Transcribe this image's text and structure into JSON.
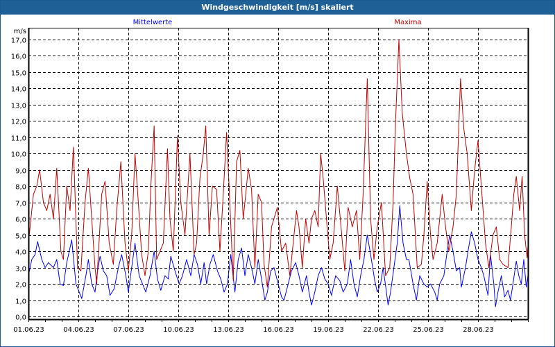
{
  "window": {
    "title": "Windgeschwindigkeit [m/s] skaliert"
  },
  "chart_data": {
    "type": "line",
    "title": "Windgeschwindigkeit [m/s] skaliert",
    "ylabel": "m/s",
    "xlabel": "",
    "ylim": [
      0,
      17
    ],
    "xlim_days": [
      0,
      30
    ],
    "grid": true,
    "y_ticks": [
      "0,0",
      "1,0",
      "2,0",
      "3,0",
      "4,0",
      "5,0",
      "6,0",
      "7,0",
      "8,0",
      "9,0",
      "10,0",
      "11,0",
      "12,0",
      "13,0",
      "14,0",
      "15,0",
      "16,0",
      "17,0"
    ],
    "x_ticks": [
      {
        "day": 0,
        "label": "01.06.23"
      },
      {
        "day": 3,
        "label": "04.06.23"
      },
      {
        "day": 6,
        "label": "07.06.23"
      },
      {
        "day": 9,
        "label": "10.06.23"
      },
      {
        "day": 12,
        "label": "13.06.23"
      },
      {
        "day": 15,
        "label": "16.06.23"
      },
      {
        "day": 18,
        "label": "19.06.23"
      },
      {
        "day": 21,
        "label": "22.06.23"
      },
      {
        "day": 24,
        "label": "25.06.23"
      },
      {
        "day": 27,
        "label": "28.06.23"
      }
    ],
    "series": [
      {
        "name": "Mittelwerte",
        "color": "#0000ff",
        "legend": "top-left",
        "points": [
          [
            0,
            2.5
          ],
          [
            0.2,
            3.5
          ],
          [
            0.4,
            3.8
          ],
          [
            0.55,
            4.6
          ],
          [
            0.8,
            3.5
          ],
          [
            1.0,
            3.0
          ],
          [
            1.2,
            3.3
          ],
          [
            1.5,
            3.0
          ],
          [
            1.7,
            3.5
          ],
          [
            1.9,
            2.0
          ],
          [
            2.1,
            1.9
          ],
          [
            2.3,
            3.3
          ],
          [
            2.6,
            4.7
          ],
          [
            2.85,
            2.0
          ],
          [
            3.05,
            1.5
          ],
          [
            3.2,
            1.1
          ],
          [
            3.45,
            2.5
          ],
          [
            3.6,
            3.5
          ],
          [
            3.8,
            2.0
          ],
          [
            4.0,
            1.5
          ],
          [
            4.15,
            2.8
          ],
          [
            4.3,
            3.7
          ],
          [
            4.5,
            2.8
          ],
          [
            4.7,
            2.5
          ],
          [
            4.9,
            1.3
          ],
          [
            5.15,
            1.7
          ],
          [
            5.4,
            3.0
          ],
          [
            5.6,
            3.8
          ],
          [
            5.85,
            2.5
          ],
          [
            6.0,
            1.5
          ],
          [
            6.2,
            3.0
          ],
          [
            6.4,
            4.5
          ],
          [
            6.65,
            2.5
          ],
          [
            6.85,
            2.0
          ],
          [
            7.05,
            1.5
          ],
          [
            7.3,
            2.5
          ],
          [
            7.55,
            4.0
          ],
          [
            7.75,
            2.3
          ],
          [
            7.95,
            1.6
          ],
          [
            8.2,
            2.5
          ],
          [
            8.4,
            2.3
          ],
          [
            8.55,
            3.7
          ],
          [
            8.8,
            2.8
          ],
          [
            9.05,
            2.0
          ],
          [
            9.25,
            2.5
          ],
          [
            9.5,
            3.5
          ],
          [
            9.75,
            2.5
          ],
          [
            9.95,
            3.8
          ],
          [
            10.15,
            3.2
          ],
          [
            10.35,
            2.0
          ],
          [
            10.55,
            3.3
          ],
          [
            10.7,
            2.0
          ],
          [
            10.9,
            3.2
          ],
          [
            11.1,
            3.8
          ],
          [
            11.35,
            2.8
          ],
          [
            11.55,
            2.3
          ],
          [
            11.75,
            1.5
          ],
          [
            11.95,
            2.0
          ],
          [
            12.15,
            3.8
          ],
          [
            12.4,
            1.5
          ],
          [
            12.6,
            3.5
          ],
          [
            12.8,
            4.2
          ],
          [
            13.0,
            2.5
          ],
          [
            13.2,
            3.8
          ],
          [
            13.4,
            3.0
          ],
          [
            13.6,
            2.0
          ],
          [
            13.8,
            3.5
          ],
          [
            14.0,
            2.3
          ],
          [
            14.2,
            1.0
          ],
          [
            14.35,
            1.5
          ],
          [
            14.55,
            2.8
          ],
          [
            14.75,
            3.0
          ],
          [
            15.0,
            2.0
          ],
          [
            15.2,
            1.2
          ],
          [
            15.35,
            1.0
          ],
          [
            15.6,
            2.0
          ],
          [
            15.8,
            2.8
          ],
          [
            16.05,
            3.3
          ],
          [
            16.25,
            2.5
          ],
          [
            16.45,
            1.5
          ],
          [
            16.7,
            2.5
          ],
          [
            16.85,
            1.5
          ],
          [
            17.0,
            0.7
          ],
          [
            17.2,
            1.5
          ],
          [
            17.4,
            2.5
          ],
          [
            17.6,
            3.0
          ],
          [
            17.8,
            2.3
          ],
          [
            18.0,
            2.0
          ],
          [
            18.2,
            1.3
          ],
          [
            18.45,
            2.5
          ],
          [
            18.7,
            2.2
          ],
          [
            18.9,
            1.5
          ],
          [
            19.15,
            2.0
          ],
          [
            19.35,
            3.5
          ],
          [
            19.55,
            2.0
          ],
          [
            19.75,
            1.2
          ],
          [
            19.95,
            2.5
          ],
          [
            20.15,
            3.5
          ],
          [
            20.35,
            5.0
          ],
          [
            20.55,
            3.8
          ],
          [
            20.8,
            2.2
          ],
          [
            20.95,
            1.5
          ],
          [
            21.15,
            2.0
          ],
          [
            21.3,
            3.0
          ],
          [
            21.5,
            1.5
          ],
          [
            21.6,
            0.7
          ],
          [
            21.75,
            1.5
          ],
          [
            21.95,
            3.0
          ],
          [
            22.15,
            4.5
          ],
          [
            22.3,
            6.8
          ],
          [
            22.5,
            4.5
          ],
          [
            22.7,
            3.5
          ],
          [
            22.85,
            3.5
          ],
          [
            23.1,
            2.0
          ],
          [
            23.3,
            1.0
          ],
          [
            23.5,
            2.5
          ],
          [
            23.75,
            2.0
          ],
          [
            23.95,
            1.8
          ],
          [
            24.15,
            2.0
          ],
          [
            24.4,
            1.5
          ],
          [
            24.55,
            1.0
          ],
          [
            24.7,
            2.0
          ],
          [
            24.95,
            2.5
          ],
          [
            25.15,
            4.0
          ],
          [
            25.3,
            5.0
          ],
          [
            25.5,
            4.0
          ],
          [
            25.7,
            2.8
          ],
          [
            25.9,
            3.0
          ],
          [
            26.0,
            1.8
          ],
          [
            26.25,
            3.0
          ],
          [
            26.4,
            4.0
          ],
          [
            26.6,
            5.2
          ],
          [
            26.8,
            4.5
          ],
          [
            27.0,
            3.5
          ],
          [
            27.2,
            3.0
          ],
          [
            27.35,
            2.5
          ],
          [
            27.6,
            1.3
          ],
          [
            27.75,
            3.8
          ],
          [
            27.95,
            2.0
          ],
          [
            28.05,
            0.6
          ],
          [
            28.2,
            1.5
          ],
          [
            28.4,
            2.5
          ],
          [
            28.6,
            1.2
          ],
          [
            28.8,
            1.6
          ],
          [
            28.95,
            1.0
          ],
          [
            29.1,
            2.0
          ],
          [
            29.3,
            3.4
          ],
          [
            29.45,
            2.5
          ],
          [
            29.6,
            2.0
          ],
          [
            29.75,
            3.5
          ],
          [
            29.9,
            1.8
          ],
          [
            30.0,
            2.5
          ]
        ]
      },
      {
        "name": "Maxima",
        "color": "#c00000",
        "legend": "top-right",
        "points": [
          [
            0,
            4.5
          ],
          [
            0.3,
            7.5
          ],
          [
            0.5,
            8.0
          ],
          [
            0.67,
            9.0
          ],
          [
            0.9,
            7.0
          ],
          [
            1.1,
            6.5
          ],
          [
            1.3,
            7.5
          ],
          [
            1.5,
            6.0
          ],
          [
            1.7,
            9.1
          ],
          [
            1.95,
            4.0
          ],
          [
            2.1,
            3.5
          ],
          [
            2.3,
            8.0
          ],
          [
            2.5,
            6.5
          ],
          [
            2.7,
            10.4
          ],
          [
            2.95,
            3.0
          ],
          [
            3.15,
            2.8
          ],
          [
            3.4,
            7.0
          ],
          [
            3.6,
            9.1
          ],
          [
            3.8,
            6.0
          ],
          [
            4.0,
            3.0
          ],
          [
            4.1,
            2.0
          ],
          [
            4.4,
            7.5
          ],
          [
            4.6,
            8.3
          ],
          [
            4.85,
            4.5
          ],
          [
            5.1,
            3.2
          ],
          [
            5.3,
            6.5
          ],
          [
            5.55,
            9.5
          ],
          [
            5.8,
            4.5
          ],
          [
            6.0,
            2.8
          ],
          [
            6.2,
            5.0
          ],
          [
            6.4,
            10.0
          ],
          [
            6.6,
            7.0
          ],
          [
            6.8,
            3.8
          ],
          [
            7.0,
            2.5
          ],
          [
            7.2,
            4.0
          ],
          [
            7.35,
            8.0
          ],
          [
            7.55,
            11.7
          ],
          [
            7.7,
            3.5
          ],
          [
            7.9,
            4.0
          ],
          [
            8.1,
            4.5
          ],
          [
            8.35,
            10.3
          ],
          [
            8.5,
            6.0
          ],
          [
            8.7,
            4.0
          ],
          [
            8.95,
            11.1
          ],
          [
            9.15,
            7.0
          ],
          [
            9.4,
            5.0
          ],
          [
            9.7,
            10.0
          ],
          [
            9.95,
            3.8
          ],
          [
            10.1,
            4.5
          ],
          [
            10.3,
            8.5
          ],
          [
            10.5,
            10.0
          ],
          [
            10.65,
            11.7
          ],
          [
            10.85,
            5.0
          ],
          [
            11.05,
            8.0
          ],
          [
            11.3,
            7.8
          ],
          [
            11.5,
            4.0
          ],
          [
            11.7,
            7.5
          ],
          [
            11.9,
            11.3
          ],
          [
            12.05,
            8.0
          ],
          [
            12.3,
            2.2
          ],
          [
            12.5,
            9.5
          ],
          [
            12.7,
            10.2
          ],
          [
            12.9,
            6.0
          ],
          [
            13.05,
            7.5
          ],
          [
            13.2,
            9.1
          ],
          [
            13.4,
            7.8
          ],
          [
            13.6,
            3.0
          ],
          [
            13.8,
            7.5
          ],
          [
            14.0,
            7.0
          ],
          [
            14.15,
            3.2
          ],
          [
            14.35,
            1.8
          ],
          [
            14.6,
            5.5
          ],
          [
            14.95,
            6.7
          ],
          [
            15.2,
            4.0
          ],
          [
            15.45,
            4.5
          ],
          [
            15.7,
            2.5
          ],
          [
            16.1,
            6.5
          ],
          [
            16.25,
            5.5
          ],
          [
            16.45,
            3.0
          ],
          [
            16.65,
            6.0
          ],
          [
            16.85,
            4.5
          ],
          [
            17.0,
            6.0
          ],
          [
            17.2,
            6.5
          ],
          [
            17.4,
            5.5
          ],
          [
            17.55,
            10.0
          ],
          [
            17.7,
            8.5
          ],
          [
            17.9,
            6.0
          ],
          [
            18.1,
            3.5
          ],
          [
            18.3,
            4.5
          ],
          [
            18.55,
            8.0
          ],
          [
            18.8,
            5.2
          ],
          [
            19.0,
            2.8
          ],
          [
            19.2,
            6.7
          ],
          [
            19.45,
            5.5
          ],
          [
            19.7,
            6.5
          ],
          [
            19.9,
            3.5
          ],
          [
            20.1,
            7.5
          ],
          [
            20.35,
            14.6
          ],
          [
            20.55,
            6.0
          ],
          [
            20.75,
            3.5
          ],
          [
            20.95,
            5.5
          ],
          [
            21.2,
            7.0
          ],
          [
            21.45,
            2.5
          ],
          [
            21.7,
            3.0
          ],
          [
            21.9,
            7.0
          ],
          [
            22.05,
            12.0
          ],
          [
            22.25,
            17.0
          ],
          [
            22.45,
            12.5
          ],
          [
            22.7,
            10.0
          ],
          [
            22.9,
            8.5
          ],
          [
            23.1,
            7.5
          ],
          [
            23.35,
            3.0
          ],
          [
            23.6,
            3.2
          ],
          [
            23.75,
            5.0
          ],
          [
            23.95,
            8.3
          ],
          [
            24.15,
            5.0
          ],
          [
            24.3,
            3.5
          ],
          [
            24.55,
            4.5
          ],
          [
            24.85,
            7.5
          ],
          [
            25.05,
            5.5
          ],
          [
            25.25,
            4.0
          ],
          [
            25.5,
            5.5
          ],
          [
            25.7,
            7.5
          ],
          [
            25.95,
            14.6
          ],
          [
            26.15,
            11.5
          ],
          [
            26.35,
            10.0
          ],
          [
            26.6,
            6.5
          ],
          [
            26.8,
            9.0
          ],
          [
            27.0,
            10.8
          ],
          [
            27.2,
            8.0
          ],
          [
            27.45,
            4.5
          ],
          [
            27.65,
            3.0
          ],
          [
            27.9,
            5.0
          ],
          [
            28.1,
            5.5
          ],
          [
            28.3,
            3.5
          ],
          [
            28.5,
            3.2
          ],
          [
            28.8,
            3.0
          ],
          [
            29.0,
            5.5
          ],
          [
            29.15,
            7.5
          ],
          [
            29.3,
            8.6
          ],
          [
            29.5,
            6.5
          ],
          [
            29.65,
            8.6
          ],
          [
            29.8,
            5.0
          ],
          [
            29.95,
            3.6
          ],
          [
            30.0,
            4.3
          ]
        ]
      }
    ]
  }
}
